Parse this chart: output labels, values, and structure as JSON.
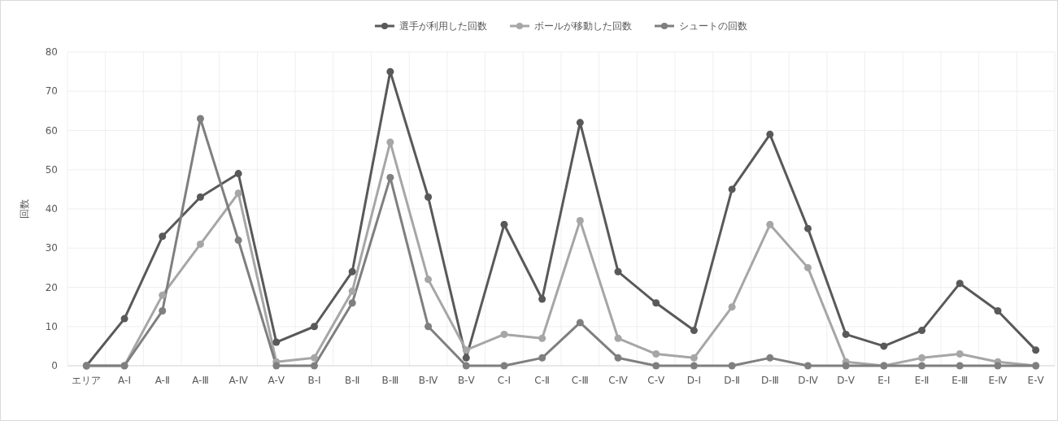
{
  "chart_data": {
    "type": "line",
    "ylabel": "回数",
    "categories": [
      "エリア",
      "A-Ⅰ",
      "A-Ⅱ",
      "A-Ⅲ",
      "A-Ⅳ",
      "A-Ⅴ",
      "B-Ⅰ",
      "B-Ⅱ",
      "B-Ⅲ",
      "B-Ⅳ",
      "B-Ⅴ",
      "C-Ⅰ",
      "C-Ⅱ",
      "C-Ⅲ",
      "C-Ⅳ",
      "C-Ⅴ",
      "D-Ⅰ",
      "D-Ⅱ",
      "D-Ⅲ",
      "D-Ⅳ",
      "D-Ⅴ",
      "E-Ⅰ",
      "E-Ⅱ",
      "E-Ⅲ",
      "E-Ⅳ",
      "E-Ⅴ"
    ],
    "series": [
      {
        "name": "選手が利用した回数",
        "color": "#595959",
        "values": [
          0,
          12,
          33,
          43,
          49,
          6,
          10,
          24,
          75,
          43,
          2,
          36,
          17,
          62,
          24,
          16,
          9,
          45,
          59,
          35,
          8,
          5,
          9,
          21,
          14,
          4
        ]
      },
      {
        "name": "ボールが移動した回数",
        "color": "#a6a6a6",
        "values": [
          0,
          0,
          18,
          31,
          44,
          1,
          2,
          19,
          57,
          22,
          4,
          8,
          7,
          37,
          7,
          3,
          2,
          15,
          36,
          25,
          1,
          0,
          2,
          3,
          1,
          0
        ]
      },
      {
        "name": "シュートの回数",
        "color": "#7f7f7f",
        "values": [
          0,
          0,
          14,
          63,
          32,
          0,
          0,
          16,
          48,
          10,
          0,
          0,
          2,
          11,
          2,
          0,
          0,
          0,
          2,
          0,
          0,
          0,
          0,
          0,
          0,
          0
        ]
      }
    ],
    "ylim": [
      0,
      80
    ],
    "yticks": [
      0,
      10,
      20,
      30,
      40,
      50,
      60,
      70,
      80
    ],
    "grid": true,
    "legend": "top",
    "marker": "circle",
    "line_style": "solid"
  }
}
